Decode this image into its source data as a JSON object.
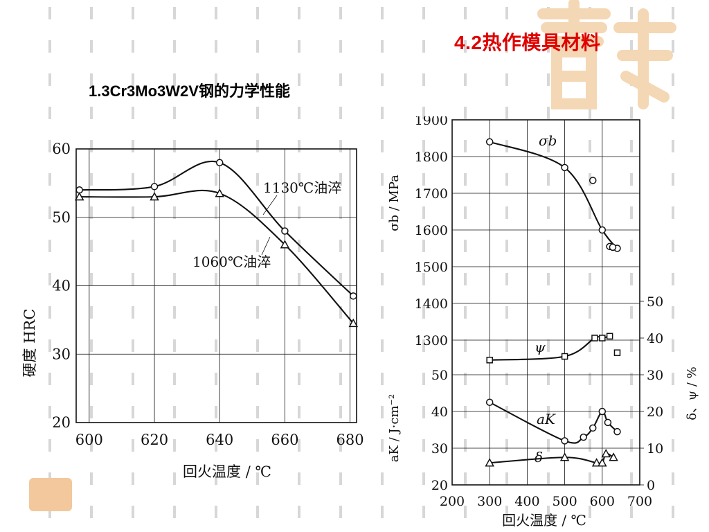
{
  "slide": {
    "title": "4.2热作模具材料",
    "subtitle": "1.3Cr3Mo3W2V钢的力学性能"
  },
  "colors": {
    "title": "#e00000",
    "logo": "#f4d7b4",
    "line": "#111111"
  },
  "chart_data": [
    {
      "type": "line",
      "x": [
        600,
        620,
        640,
        660,
        680
      ],
      "series": [
        {
          "name": "1130℃油淬",
          "x": [
            597,
            620,
            640,
            660,
            681
          ],
          "values": [
            54,
            54.5,
            58,
            48,
            38.5
          ],
          "marker": "circle"
        },
        {
          "name": "1060℃油淬",
          "x": [
            597,
            620,
            640,
            660,
            681
          ],
          "values": [
            53,
            53,
            53.5,
            46,
            34.5
          ],
          "marker": "triangle"
        }
      ],
      "xlim": [
        596,
        682
      ],
      "ylim": [
        20,
        60
      ],
      "xticks": [
        "600",
        "620",
        "640",
        "660",
        "680"
      ],
      "yticks": [
        "20",
        "30",
        "40",
        "50",
        "60"
      ],
      "ylabel": "硬度 HRC",
      "xlabel": "回火温度 / ℃",
      "grid": true
    },
    {
      "type": "line",
      "panels": [
        {
          "ylabel": "σb / MPa",
          "ylim": [
            1300,
            1900
          ],
          "yticks": [
            "1300",
            "1400",
            "1500",
            "1600",
            "1700",
            "1800",
            "1900"
          ],
          "series": [
            {
              "name": "σb",
              "x": [
                300,
                500,
                600,
                640
              ],
              "values": [
                1840,
                1770,
                1600,
                1550
              ],
              "marker": "circle",
              "extra_points": {
                "x": [
                  575,
                  620,
                  628
                ],
                "values": [
                  1735,
                  1555,
                  1553
                ]
              }
            }
          ]
        },
        {
          "ylabel": "aK / J·cm⁻²",
          "ylim": [
            20,
            50
          ],
          "yticks": [
            "20",
            "30",
            "40",
            "50"
          ],
          "series": [
            {
              "name": "aK",
              "x": [
                300,
                500,
                550,
                575,
                600,
                615,
                640
              ],
              "values": [
                42.5,
                32,
                33,
                35.5,
                40,
                37,
                34.5
              ],
              "marker": "circle"
            }
          ]
        },
        {
          "ylabel": "δ、ψ / %",
          "axis": "right",
          "ylim": [
            0,
            50
          ],
          "yticks": [
            "0",
            "10",
            "20",
            "30",
            "40",
            "50"
          ],
          "series": [
            {
              "name": "ψ",
              "x": [
                300,
                500,
                580,
                600,
                620
              ],
              "values": [
                34,
                35,
                40,
                40,
                40.5
              ],
              "marker": "square",
              "extra_points": {
                "x": [
                  640
                ],
                "values": [
                  36
                ]
              }
            },
            {
              "name": "δ",
              "x": [
                300,
                500,
                585,
                600,
                610,
                630
              ],
              "values": [
                6,
                7.5,
                6,
                6,
                8.5,
                7.5
              ],
              "marker": "triangle"
            }
          ]
        }
      ],
      "xlim": [
        200,
        700
      ],
      "xticks": [
        "200",
        "300",
        "400",
        "500",
        "600",
        "700"
      ],
      "xlabel": "回火温度 / ℃",
      "grid": true
    }
  ]
}
